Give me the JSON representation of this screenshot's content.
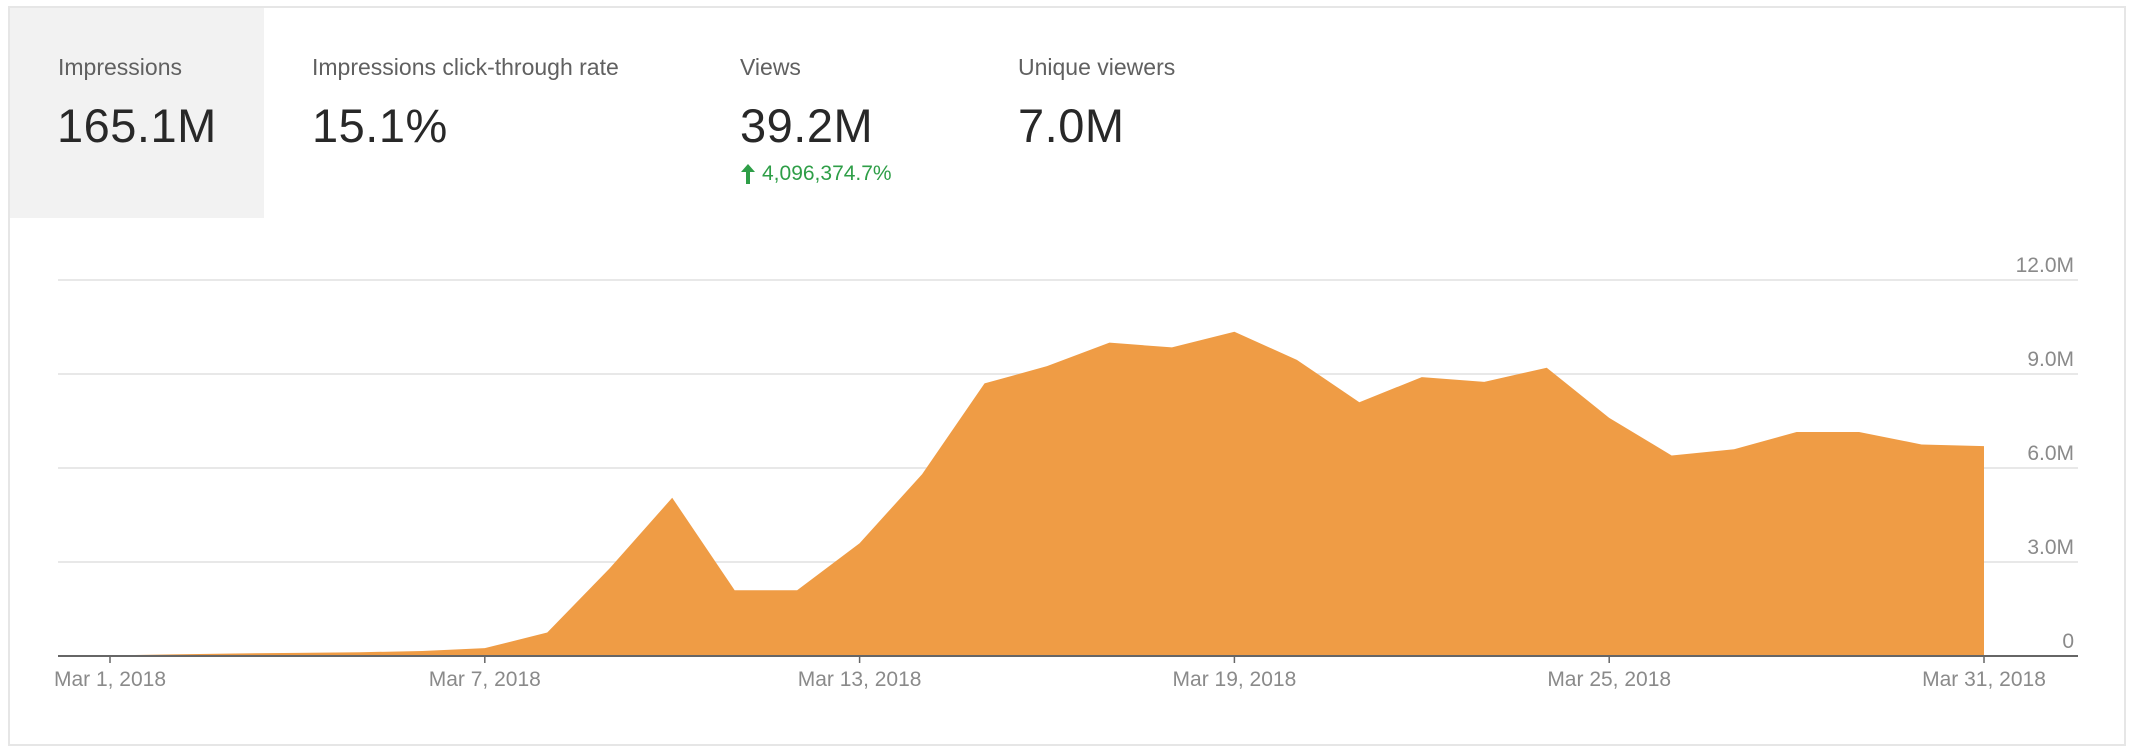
{
  "metrics": [
    {
      "label": "Impressions",
      "value": "165.1M",
      "selected": true
    },
    {
      "label": "Impressions click-through rate",
      "value": "15.1%"
    },
    {
      "label": "Views",
      "value": "39.2M",
      "delta": "4,096,374.7%"
    },
    {
      "label": "Unique viewers",
      "value": "7.0M"
    }
  ],
  "colors": {
    "area": "#ef9c45",
    "grid": "#e0e0e0",
    "axis": "#666666",
    "tick_text": "#8a8a8a",
    "delta_positive": "#2e9e47",
    "selected_tab_bg": "#f2f2f2"
  },
  "chart_data": {
    "type": "area",
    "x": [
      "2018-03-01",
      "2018-03-02",
      "2018-03-03",
      "2018-03-04",
      "2018-03-05",
      "2018-03-06",
      "2018-03-07",
      "2018-03-08",
      "2018-03-09",
      "2018-03-10",
      "2018-03-11",
      "2018-03-12",
      "2018-03-13",
      "2018-03-14",
      "2018-03-15",
      "2018-03-16",
      "2018-03-17",
      "2018-03-18",
      "2018-03-19",
      "2018-03-20",
      "2018-03-21",
      "2018-03-22",
      "2018-03-23",
      "2018-03-24",
      "2018-03-25",
      "2018-03-26",
      "2018-03-27",
      "2018-03-28",
      "2018-03-29",
      "2018-03-30",
      "2018-03-31"
    ],
    "series": [
      {
        "values": [
          0.02,
          0.05,
          0.08,
          0.1,
          0.12,
          0.16,
          0.25,
          0.75,
          2.8,
          5.05,
          2.1,
          2.1,
          3.6,
          5.8,
          8.7,
          9.25,
          10.0,
          9.85,
          10.35,
          9.45,
          8.1,
          8.9,
          8.75,
          9.2,
          7.6,
          6.4,
          6.6,
          7.15,
          7.15,
          6.75,
          6.7
        ]
      }
    ],
    "x_tick_labels": [
      {
        "at": "2018-03-01",
        "label": "Mar 1, 2018"
      },
      {
        "at": "2018-03-07",
        "label": "Mar 7, 2018"
      },
      {
        "at": "2018-03-13",
        "label": "Mar 13, 2018"
      },
      {
        "at": "2018-03-19",
        "label": "Mar 19, 2018"
      },
      {
        "at": "2018-03-25",
        "label": "Mar 25, 2018"
      },
      {
        "at": "2018-03-31",
        "label": "Mar 31, 2018"
      }
    ],
    "y_ticks": [
      {
        "value": 0,
        "label": "0"
      },
      {
        "value": 3,
        "label": "3.0M"
      },
      {
        "value": 6,
        "label": "6.0M"
      },
      {
        "value": 9,
        "label": "9.0M"
      },
      {
        "value": 12,
        "label": "12.0M"
      }
    ],
    "ylim": [
      0,
      12
    ],
    "y_unit": "M",
    "grid": true,
    "y_axis_side": "right"
  }
}
